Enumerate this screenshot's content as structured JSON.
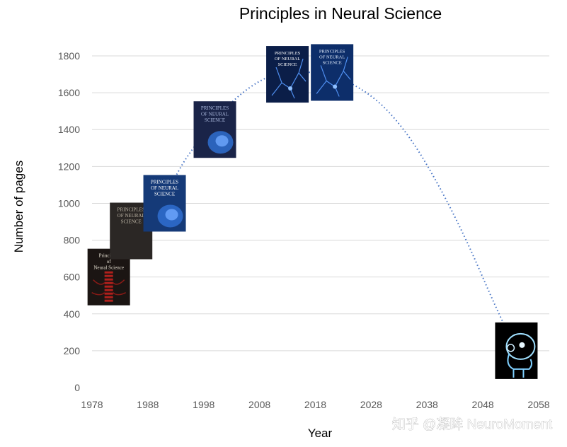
{
  "chart_data": {
    "type": "scatter",
    "title": "Principles in Neural Science",
    "xlabel": "Year",
    "ylabel": "Number of pages",
    "xlim": [
      1978,
      2058
    ],
    "ylim": [
      0,
      1800
    ],
    "x_ticks": [
      1978,
      1988,
      1998,
      2008,
      2018,
      2028,
      2038,
      2048,
      2058
    ],
    "y_ticks": [
      0,
      200,
      400,
      600,
      800,
      1000,
      1200,
      1400,
      1600,
      1800
    ],
    "grid": "horizontal",
    "trendline": "polynomial (dotted)",
    "series": [
      {
        "marker": "book-cover-image",
        "points": [
          {
            "x": 1981,
            "y": 600,
            "cover_text": [
              "Principles",
              "of",
              "Neural Science"
            ]
          },
          {
            "x": 1985,
            "y": 850,
            "cover_text": [
              "PRINCIPLES",
              "OF NEURAL",
              "SCIENCE"
            ]
          },
          {
            "x": 1991,
            "y": 1000,
            "cover_text": [
              "PRINCIPLES",
              "OF NEURAL",
              "SCIENCE"
            ]
          },
          {
            "x": 2000,
            "y": 1400,
            "cover_text": [
              "PRINCIPLES",
              "OF NEURAL",
              "SCIENCE"
            ]
          },
          {
            "x": 2013,
            "y": 1700,
            "cover_text": [
              "PRINCIPLES",
              "OF NEURAL",
              "SCIENCE"
            ]
          },
          {
            "x": 2021,
            "y": 1710,
            "cover_text": [
              "PRINCIPLES",
              "OF NEURAL",
              "SCIENCE"
            ]
          },
          {
            "x": 2054,
            "y": 200,
            "cover_text": []
          }
        ]
      }
    ],
    "trend_points": [
      [
        1981,
        600
      ],
      [
        1985,
        840
      ],
      [
        1991,
        1050
      ],
      [
        1995,
        1250
      ],
      [
        2000,
        1450
      ],
      [
        2005,
        1600
      ],
      [
        2010,
        1690
      ],
      [
        2015,
        1710
      ],
      [
        2020,
        1700
      ],
      [
        2025,
        1640
      ],
      [
        2030,
        1530
      ],
      [
        2035,
        1350
      ],
      [
        2040,
        1100
      ],
      [
        2045,
        800
      ],
      [
        2050,
        460
      ],
      [
        2054,
        200
      ]
    ]
  },
  "watermark": "知乎 @凝眸 NeuroMoment",
  "colors": {
    "grid": "#d9d9d9",
    "trend": "#4472c4",
    "tick_text": "#595959"
  }
}
